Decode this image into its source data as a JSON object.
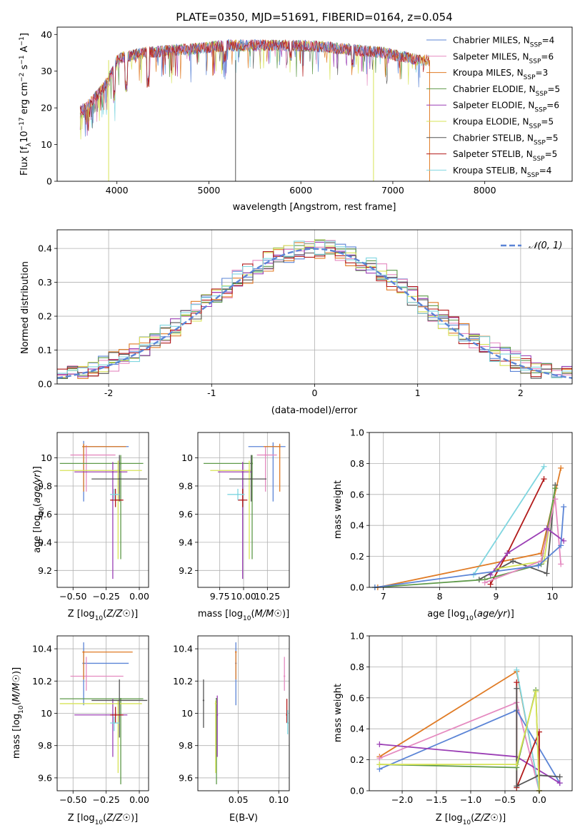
{
  "page": {
    "title": "PLATE=0350, MJD=51691, FIBERID=0164, z=0.054"
  },
  "colors": {
    "Chabrier MILES": "#5b84d6",
    "Salpeter MILES": "#e58ac0",
    "Kroupa MILES": "#e07b25",
    "Chabrier ELODIE": "#5f9a4a",
    "Salpeter ELODIE": "#9b3fb5",
    "Kroupa ELODIE": "#d7e356",
    "Chabrier STELIB": "#555555",
    "Salpeter STELIB": "#b21a1a",
    "Kroupa STELIB": "#7fd6e0",
    "normal": "#5b84d6"
  },
  "chart_data": [
    {
      "id": "spectrum",
      "type": "line",
      "title": "PLATE=0350, MJD=51691, FIBERID=0164, z=0.054",
      "xlabel": "wavelength [Angstrom, rest frame]",
      "ylabel": "Flux [f_λ10⁻¹⁷ erg cm⁻² s⁻¹ A⁻¹]",
      "xlim": [
        3350,
        8950
      ],
      "ylim": [
        0,
        42
      ],
      "xticks": [
        4000,
        5000,
        6000,
        7000,
        8000
      ],
      "yticks": [
        0,
        10,
        20,
        30,
        40
      ],
      "grid": false,
      "legend_position": "upper right",
      "series": [
        {
          "name": "Chabrier MILES, N_SSP=4",
          "label_main": "Chabrier MILES, N",
          "label_sub": "SSP",
          "label_end": "=4"
        },
        {
          "name": "Salpeter MILES, N_SSP=6",
          "label_main": "Salpeter MILES, N",
          "label_sub": "SSP",
          "label_end": "=6"
        },
        {
          "name": "Kroupa MILES, N_SSP=3",
          "label_main": "Kroupa MILES, N",
          "label_sub": "SSP",
          "label_end": "=3"
        },
        {
          "name": "Chabrier ELODIE, N_SSP=5",
          "label_main": "Chabrier ELODIE, N",
          "label_sub": "SSP",
          "label_end": "=5"
        },
        {
          "name": "Salpeter ELODIE, N_SSP=6",
          "label_main": "Salpeter ELODIE, N",
          "label_sub": "SSP",
          "label_end": "=6"
        },
        {
          "name": "Kroupa ELODIE, N_SSP=5",
          "label_main": "Kroupa ELODIE, N",
          "label_sub": "SSP",
          "label_end": "=5"
        },
        {
          "name": "Chabrier STELIB, N_SSP=5",
          "label_main": "Chabrier STELIB, N",
          "label_sub": "SSP",
          "label_end": "=5"
        },
        {
          "name": "Salpeter STELIB, N_SSP=5",
          "label_main": "Salpeter STELIB, N",
          "label_sub": "SSP",
          "label_end": "=5"
        },
        {
          "name": "Kroupa STELIB, N_SSP=4",
          "label_main": "Kroupa STELIB, N",
          "label_sub": "SSP",
          "label_end": "=4"
        }
      ],
      "continuum": {
        "wavelength": [
          3600,
          3700,
          3800,
          3900,
          4000,
          4100,
          4300,
          4500,
          4800,
          5000,
          5200,
          5500,
          5800,
          6000,
          6300,
          6500,
          6700,
          6900,
          7100,
          7300,
          7400
        ],
        "flux": [
          19,
          21,
          24,
          27,
          33,
          34,
          35,
          35.5,
          36,
          36.5,
          37,
          37,
          37,
          37,
          36.5,
          36,
          35.5,
          35,
          34,
          33,
          33
        ]
      },
      "spikes": [
        {
          "wavelength": 3910,
          "flux": 0
        },
        {
          "wavelength": 5290,
          "flux": 0
        },
        {
          "wavelength": 6790,
          "flux": 0
        },
        {
          "wavelength": 7400,
          "flux": 0
        }
      ]
    },
    {
      "id": "residuals",
      "type": "line",
      "xlabel": "(data-model)/error",
      "ylabel": "Normed distribution",
      "xlim": [
        -2.5,
        2.5
      ],
      "ylim": [
        0,
        0.455
      ],
      "xticks": [
        -2,
        -1,
        0,
        1,
        2
      ],
      "yticks": [
        0.0,
        0.1,
        0.2,
        0.3,
        0.4
      ],
      "grid": true,
      "legend_position": "upper right",
      "normal_label": "𝒩(0, 1)",
      "histogram_bins": {
        "start": -2.5,
        "width": 0.1,
        "count": 50
      }
    },
    {
      "id": "age_vs_Z",
      "type": "scatter",
      "xlabel_main": "Z [log",
      "xlabel_sub": "10",
      "xlabel_end": "(Z/Z☉)]",
      "ylabel_main": "age  [log",
      "ylabel_sub": "10",
      "ylabel_end": "(age/yr)]",
      "xlim": [
        -0.62,
        0.07
      ],
      "ylim": [
        9.08,
        10.18
      ],
      "xticks": [
        -0.5,
        -0.25,
        0.0
      ],
      "xticklabels": [
        "−0.50",
        "−0.25",
        "0.00"
      ],
      "yticks": [
        9.2,
        9.4,
        9.6,
        9.8,
        10.0
      ],
      "grid": true,
      "points": [
        {
          "series": "Chabrier MILES",
          "x": -0.42,
          "xmin": -0.43,
          "xmax": -0.08,
          "y": 10.08,
          "ymin": 9.69,
          "ymax": 10.12
        },
        {
          "series": "Salpeter MILES",
          "x": -0.4,
          "xmin": -0.52,
          "xmax": -0.18,
          "y": 10.02,
          "ymin": 9.76,
          "ymax": 10.09
        },
        {
          "series": "Kroupa MILES",
          "x": -0.42,
          "xmin": -0.43,
          "xmax": -0.1,
          "y": 10.08,
          "ymin": 9.76,
          "ymax": 10.1
        },
        {
          "series": "Chabrier ELODIE",
          "x": -0.14,
          "xmin": -0.6,
          "xmax": 0.03,
          "y": 9.96,
          "ymin": 9.28,
          "ymax": 10.02
        },
        {
          "series": "Salpeter ELODIE",
          "x": -0.2,
          "xmin": -0.49,
          "xmax": -0.09,
          "y": 9.9,
          "ymin": 9.14,
          "ymax": 9.97
        },
        {
          "series": "Kroupa ELODIE",
          "x": -0.16,
          "xmin": -0.6,
          "xmax": 0.02,
          "y": 9.91,
          "ymin": 9.28,
          "ymax": 9.98
        },
        {
          "series": "Chabrier STELIB",
          "x": -0.15,
          "xmin": -0.36,
          "xmax": 0.06,
          "y": 9.85,
          "ymin": 9.69,
          "ymax": 10.02
        },
        {
          "series": "Salpeter STELIB",
          "x": -0.18,
          "xmin": -0.22,
          "xmax": -0.12,
          "y": 9.7,
          "ymin": 9.65,
          "ymax": 9.78
        },
        {
          "series": "Kroupa STELIB",
          "x": -0.19,
          "xmin": -0.22,
          "xmax": -0.15,
          "y": 9.74,
          "ymin": 9.7,
          "ymax": 9.78
        }
      ]
    },
    {
      "id": "age_vs_mass",
      "type": "scatter",
      "xlabel_main": "mass [log",
      "xlabel_sub": "10",
      "xlabel_end": "(M/M☉)]",
      "xlim": [
        9.52,
        10.48
      ],
      "ylim": [
        9.08,
        10.18
      ],
      "xticks": [
        9.75,
        10.0,
        10.25
      ],
      "xticklabels": [
        "9.75",
        "10.00",
        "10.25"
      ],
      "yticks": [
        9.2,
        9.4,
        9.6,
        9.8,
        10.0
      ],
      "grid": true,
      "points": [
        {
          "series": "Chabrier MILES",
          "x": 10.31,
          "xmin": 10.05,
          "xmax": 10.44,
          "y": 10.08,
          "ymin": 9.69,
          "ymax": 10.11
        },
        {
          "series": "Salpeter MILES",
          "x": 10.23,
          "xmin": 10.14,
          "xmax": 10.35,
          "y": 10.02,
          "ymin": 9.76,
          "ymax": 10.08
        },
        {
          "series": "Kroupa MILES",
          "x": 10.38,
          "xmin": 10.21,
          "xmax": 10.38,
          "y": 10.08,
          "ymin": 9.76,
          "ymax": 10.1
        },
        {
          "series": "Chabrier ELODIE",
          "x": 10.09,
          "xmin": 9.58,
          "xmax": 10.09,
          "y": 9.96,
          "ymin": 9.28,
          "ymax": 10.02
        },
        {
          "series": "Salpeter ELODIE",
          "x": 9.99,
          "xmin": 9.73,
          "xmax": 10.09,
          "y": 9.9,
          "ymin": 9.14,
          "ymax": 9.97
        },
        {
          "series": "Kroupa ELODIE",
          "x": 10.06,
          "xmin": 9.65,
          "xmax": 10.08,
          "y": 9.91,
          "ymin": 9.28,
          "ymax": 9.98
        },
        {
          "series": "Chabrier STELIB",
          "x": 10.08,
          "xmin": 9.85,
          "xmax": 10.24,
          "y": 9.85,
          "ymin": 9.69,
          "ymax": 10.02
        },
        {
          "series": "Salpeter STELIB",
          "x": 9.99,
          "xmin": 9.94,
          "xmax": 10.04,
          "y": 9.7,
          "ymin": 9.65,
          "ymax": 9.78
        },
        {
          "series": "Kroupa STELIB",
          "x": 9.94,
          "xmin": 9.83,
          "xmax": 10.01,
          "y": 9.74,
          "ymin": 9.7,
          "ymax": 9.78
        }
      ]
    },
    {
      "id": "weight_vs_age",
      "type": "line",
      "xlabel_main": "age  [log",
      "xlabel_sub": "10",
      "xlabel_end": "(age/yr)]",
      "ylabel": "mass weight",
      "xlim": [
        6.75,
        10.35
      ],
      "ylim": [
        0,
        1.0
      ],
      "xticks": [
        7,
        8,
        9,
        10
      ],
      "yticks": [
        0.0,
        0.2,
        0.4,
        0.6,
        0.8,
        1.0
      ],
      "grid": true,
      "series": [
        {
          "series": "Kroupa STELIB",
          "x": [
            8.6,
            9.85
          ],
          "y": [
            0.08,
            0.78
          ]
        },
        {
          "series": "Kroupa MILES",
          "x": [
            6.9,
            9.8,
            10.15
          ],
          "y": [
            0.0,
            0.22,
            0.77
          ]
        },
        {
          "series": "Salpeter STELIB",
          "x": [
            8.9,
            9.2,
            9.85
          ],
          "y": [
            0.02,
            0.22,
            0.7
          ]
        },
        {
          "series": "Chabrier STELIB",
          "x": [
            8.7,
            9.3,
            9.9,
            10.05
          ],
          "y": [
            0.05,
            0.17,
            0.09,
            0.66
          ]
        },
        {
          "series": "Kroupa ELODIE",
          "x": [
            9.0,
            9.85,
            10.05
          ],
          "y": [
            0.12,
            0.17,
            0.64
          ]
        },
        {
          "series": "Chabrier ELODIE",
          "x": [
            6.85,
            8.8,
            9.8,
            10.05
          ],
          "y": [
            0.0,
            0.05,
            0.15,
            0.64
          ]
        },
        {
          "series": "Salpeter MILES",
          "x": [
            8.8,
            9.8,
            10.05,
            10.15
          ],
          "y": [
            0.03,
            0.17,
            0.57,
            0.15
          ]
        },
        {
          "series": "Salpeter ELODIE",
          "x": [
            8.9,
            9.2,
            9.9,
            10.2
          ],
          "y": [
            0.08,
            0.22,
            0.38,
            0.3
          ]
        },
        {
          "series": "Chabrier MILES",
          "x": [
            6.85,
            9.75,
            10.15,
            10.2
          ],
          "y": [
            0.0,
            0.14,
            0.27,
            0.52
          ]
        }
      ]
    },
    {
      "id": "mass_vs_Z",
      "type": "scatter",
      "xlabel_main": "Z [log",
      "xlabel_sub": "10",
      "xlabel_end": "(Z/Z☉)]",
      "ylabel_main": "mass [log",
      "ylabel_sub": "10",
      "ylabel_end": "(M/M☉)]",
      "xlim": [
        -0.62,
        0.07
      ],
      "ylim": [
        9.52,
        10.48
      ],
      "xticks": [
        -0.5,
        -0.25,
        0.0
      ],
      "xticklabels": [
        "−0.50",
        "−0.25",
        "0.00"
      ],
      "yticks": [
        9.6,
        9.8,
        10.0,
        10.2,
        10.4
      ],
      "grid": true,
      "points": [
        {
          "series": "Chabrier MILES",
          "x": -0.42,
          "xmin": -0.43,
          "xmax": -0.08,
          "y": 10.31,
          "ymin": 10.05,
          "ymax": 10.44
        },
        {
          "series": "Salpeter MILES",
          "x": -0.4,
          "xmin": -0.52,
          "xmax": -0.12,
          "y": 10.23,
          "ymin": 10.14,
          "ymax": 10.35
        },
        {
          "series": "Kroupa MILES",
          "x": -0.42,
          "xmin": -0.43,
          "xmax": -0.05,
          "y": 10.38,
          "ymin": 10.21,
          "ymax": 10.38
        },
        {
          "series": "Chabrier ELODIE",
          "x": -0.14,
          "xmin": -0.6,
          "xmax": 0.03,
          "y": 10.09,
          "ymin": 9.56,
          "ymax": 10.09
        },
        {
          "series": "Salpeter ELODIE",
          "x": -0.2,
          "xmin": -0.49,
          "xmax": -0.09,
          "y": 9.99,
          "ymin": 9.73,
          "ymax": 10.09
        },
        {
          "series": "Kroupa ELODIE",
          "x": -0.16,
          "xmin": -0.6,
          "xmax": 0.02,
          "y": 10.06,
          "ymin": 9.63,
          "ymax": 10.08
        },
        {
          "series": "Chabrier STELIB",
          "x": -0.15,
          "xmin": -0.36,
          "xmax": 0.06,
          "y": 10.08,
          "ymin": 9.85,
          "ymax": 10.21
        },
        {
          "series": "Salpeter STELIB",
          "x": -0.18,
          "xmin": -0.22,
          "xmax": -0.12,
          "y": 9.99,
          "ymin": 9.94,
          "ymax": 10.04
        },
        {
          "series": "Kroupa STELIB",
          "x": -0.19,
          "xmin": -0.22,
          "xmax": -0.15,
          "y": 9.94,
          "ymin": 9.89,
          "ymax": 9.98
        }
      ]
    },
    {
      "id": "mass_vs_EBV",
      "type": "scatter",
      "xlabel": "E(B-V)",
      "xlim": [
        0.0,
        0.113
      ],
      "ylim": [
        9.52,
        10.48
      ],
      "xticks": [
        0.05,
        0.1
      ],
      "xticklabels": [
        "0.05",
        "0.10"
      ],
      "yticks": [
        9.6,
        9.8,
        10.0,
        10.2,
        10.4
      ],
      "grid": true,
      "points": [
        {
          "series": "Chabrier MILES",
          "x": 0.047,
          "y": 10.31,
          "ymin": 10.05,
          "ymax": 10.44
        },
        {
          "series": "Salpeter MILES",
          "x": 0.107,
          "y": 10.23,
          "ymin": 10.14,
          "ymax": 10.35
        },
        {
          "series": "Kroupa MILES",
          "x": 0.047,
          "y": 10.38,
          "ymin": 10.21,
          "ymax": 10.38
        },
        {
          "series": "Chabrier ELODIE",
          "x": 0.023,
          "y": 10.09,
          "ymin": 9.56,
          "ymax": 10.09
        },
        {
          "series": "Salpeter ELODIE",
          "x": 0.024,
          "y": 9.99,
          "ymin": 9.73,
          "ymax": 10.11
        },
        {
          "series": "Kroupa ELODIE",
          "x": 0.022,
          "y": 10.06,
          "ymin": 9.63,
          "ymax": 10.08
        },
        {
          "series": "Chabrier STELIB",
          "x": 0.007,
          "y": 10.08,
          "ymin": 9.91,
          "ymax": 10.21
        },
        {
          "series": "Salpeter STELIB",
          "x": 0.11,
          "y": 9.99,
          "ymin": 9.94,
          "ymax": 10.09
        },
        {
          "series": "Kroupa STELIB",
          "x": 0.111,
          "y": 9.94,
          "ymin": 9.87,
          "ymax": 10.02
        }
      ]
    },
    {
      "id": "weight_vs_Z",
      "type": "line",
      "xlabel_main": "Z [log",
      "xlabel_sub": "10",
      "xlabel_end": "(Z/Z☉)]",
      "ylabel": "mass weight",
      "xlim": [
        -2.48,
        0.48
      ],
      "ylim": [
        0,
        1.0
      ],
      "xticks": [
        -2.0,
        -1.5,
        -1.0,
        -0.5,
        0.0
      ],
      "xticklabels": [
        "−2.0",
        "−1.5",
        "−1.0",
        "−0.5",
        "0.0"
      ],
      "yticks": [
        0.0,
        0.2,
        0.4,
        0.6,
        0.8,
        1.0
      ],
      "grid": true,
      "series": [
        {
          "series": "Kroupa MILES",
          "x": [
            -2.33,
            -0.33,
            0.0
          ],
          "y": [
            0.22,
            0.77,
            0.0
          ]
        },
        {
          "series": "Salpeter MILES",
          "x": [
            -2.33,
            -0.33,
            0.0
          ],
          "y": [
            0.21,
            0.57,
            0.0
          ]
        },
        {
          "series": "Chabrier MILES",
          "x": [
            -2.33,
            -0.33,
            0.3
          ],
          "y": [
            0.14,
            0.52,
            0.05
          ]
        },
        {
          "series": "Salpeter ELODIE",
          "x": [
            -2.33,
            -0.33,
            0.3
          ],
          "y": [
            0.3,
            0.22,
            0.05
          ]
        },
        {
          "series": "Kroupa STELIB",
          "x": [
            -0.33,
            0.0
          ],
          "y": [
            0.78,
            0.0
          ]
        },
        {
          "series": "Salpeter STELIB",
          "x": [
            -0.33,
            -0.33,
            0.0,
            0.0
          ],
          "y": [
            0.7,
            0.02,
            0.38,
            0.0
          ]
        },
        {
          "series": "Chabrier STELIB",
          "x": [
            -0.33,
            -0.33,
            0.0,
            0.3
          ],
          "y": [
            0.66,
            0.03,
            0.1,
            0.09
          ]
        },
        {
          "series": "Chabrier ELODIE",
          "x": [
            -2.33,
            -0.33,
            -0.05,
            0.0
          ],
          "y": [
            0.17,
            0.15,
            0.65,
            0.0
          ]
        },
        {
          "series": "Kroupa ELODIE",
          "x": [
            -2.33,
            -0.33,
            -0.05,
            0.0
          ],
          "y": [
            0.17,
            0.17,
            0.64,
            0.0
          ]
        }
      ]
    }
  ]
}
